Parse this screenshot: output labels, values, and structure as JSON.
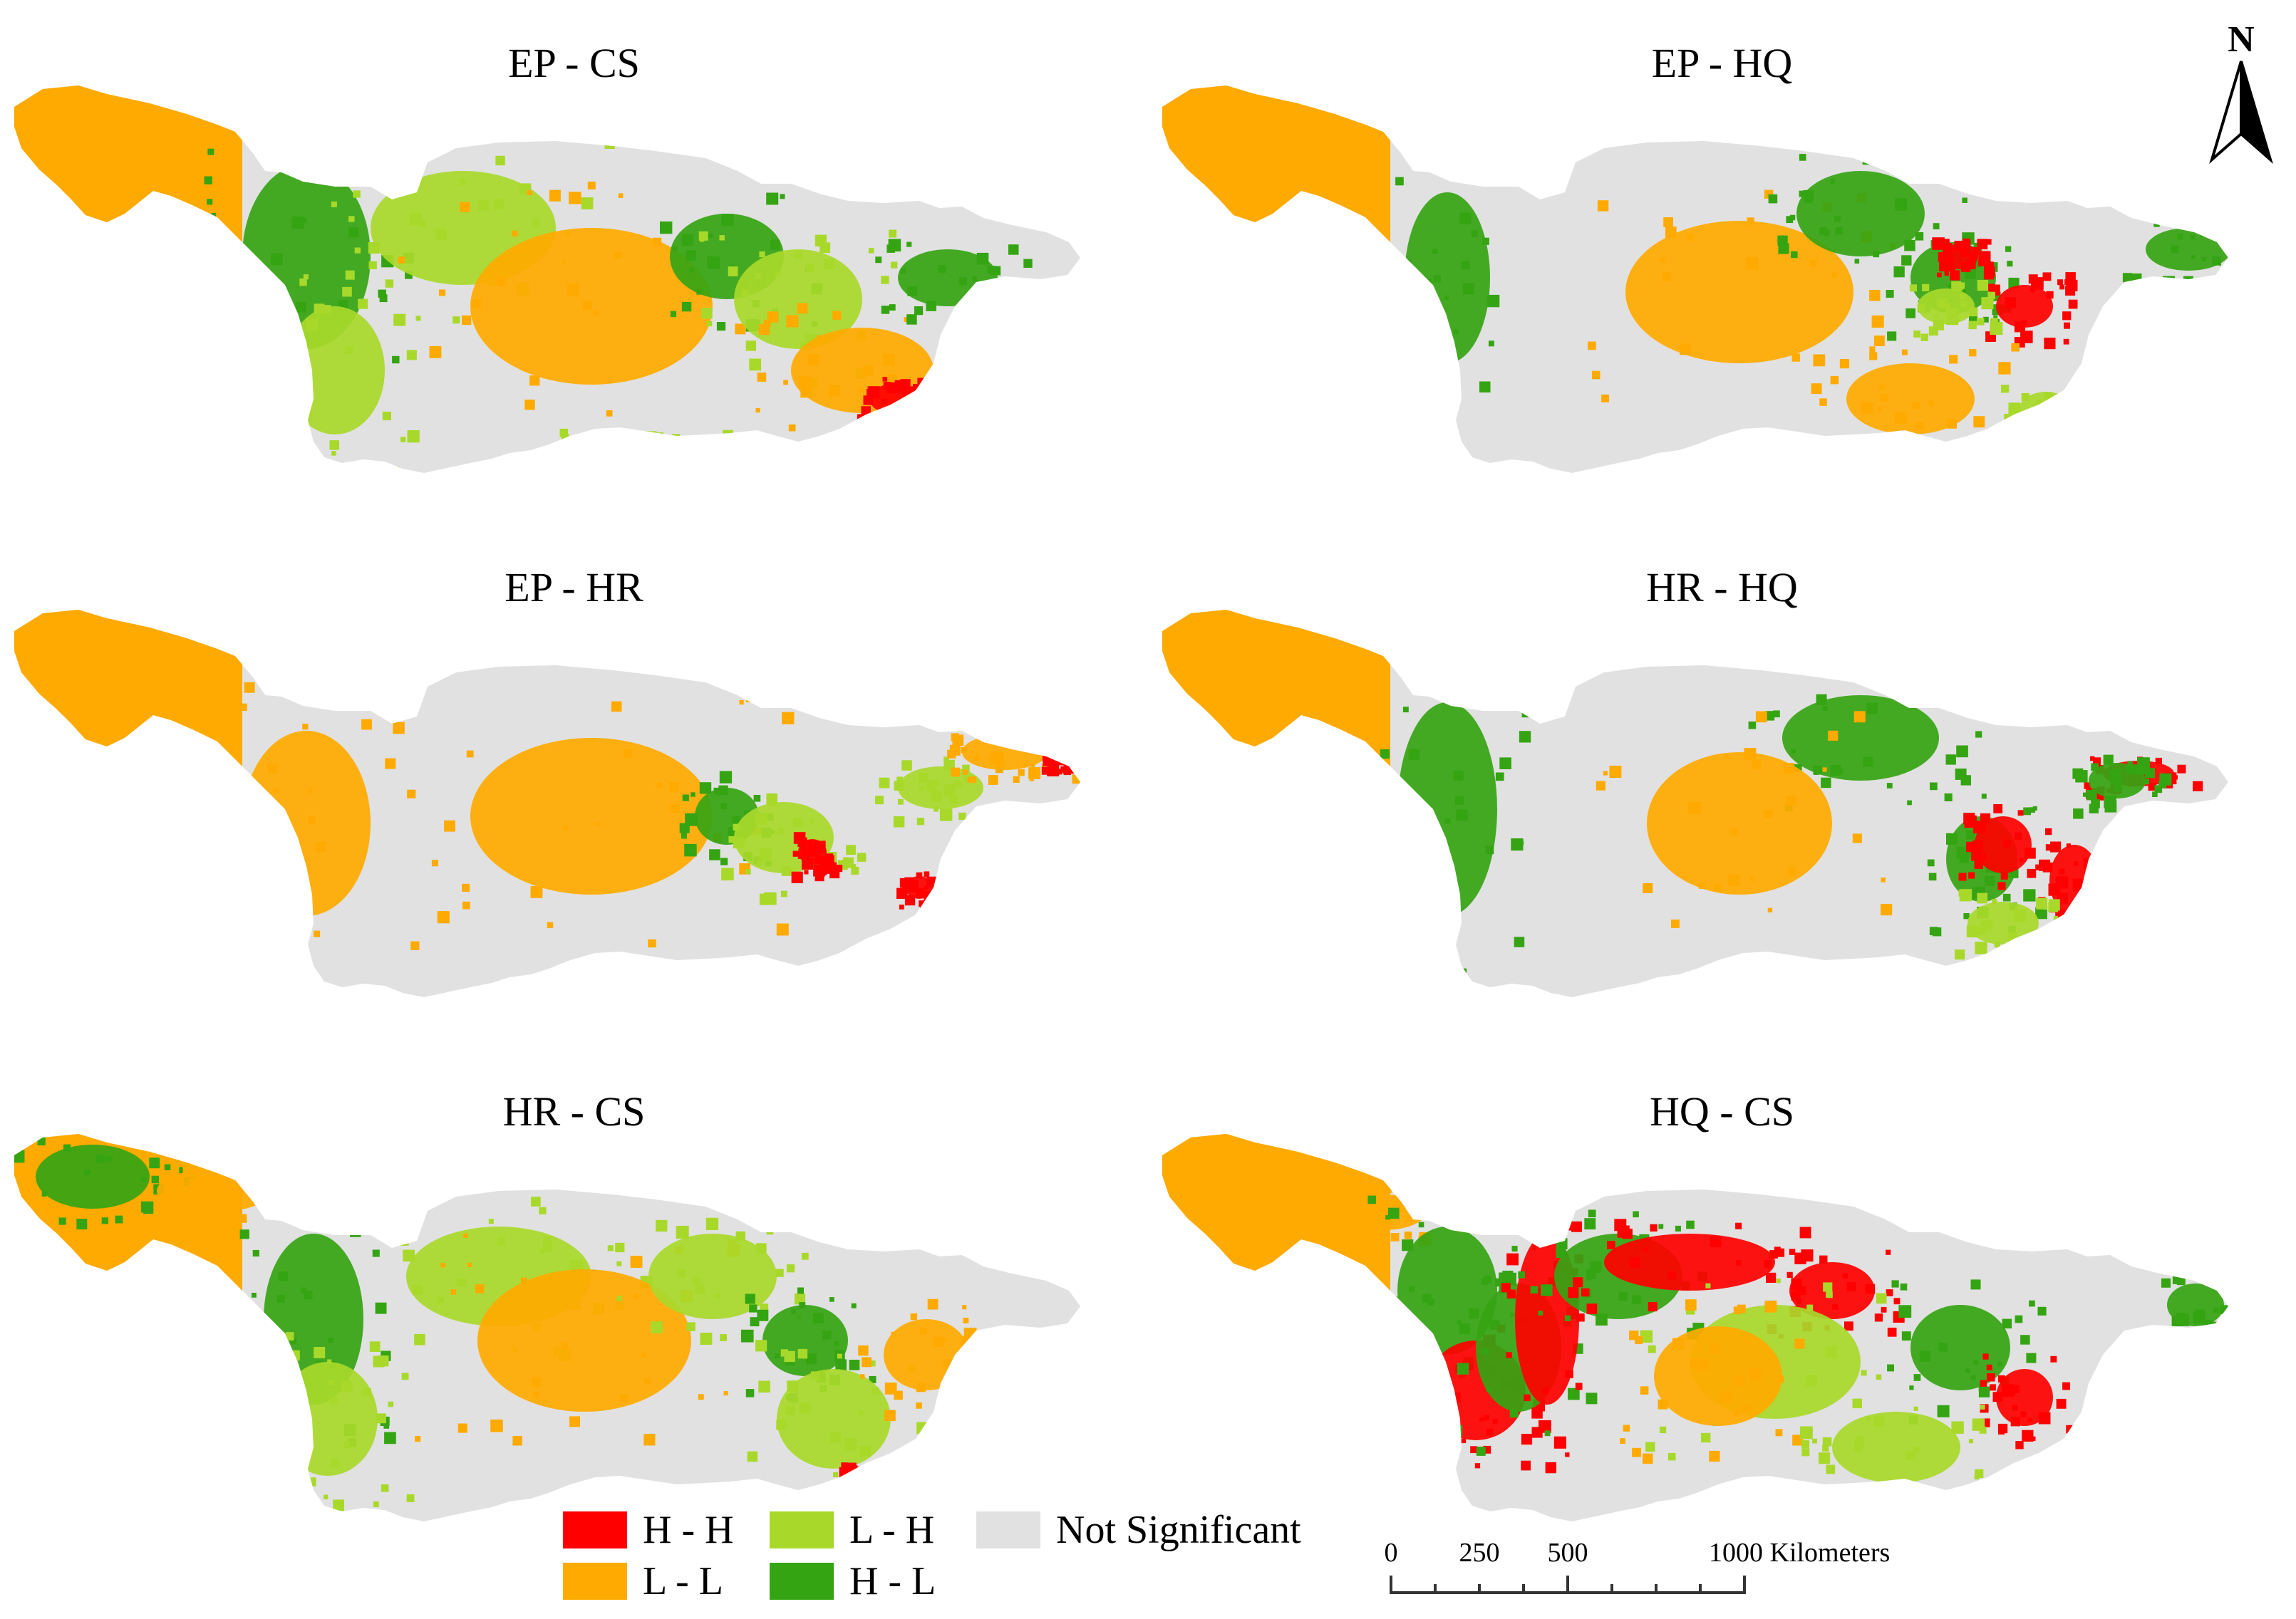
{
  "legend": {
    "hh": {
      "label": "H - H",
      "color": "#ff0000"
    },
    "ll": {
      "label": "L - L",
      "color": "#ffaa00"
    },
    "lh": {
      "label": "L - H",
      "color": "#a8d92a"
    },
    "hl": {
      "label": "H - L",
      "color": "#35a412"
    },
    "ns": {
      "label": "Not Significant",
      "color": "#e1e1e1"
    }
  },
  "panels": [
    {
      "title": "EP - CS"
    },
    {
      "title": "EP - HQ"
    },
    {
      "title": "EP - HR"
    },
    {
      "title": "HR - HQ"
    },
    {
      "title": "HR - CS"
    },
    {
      "title": "HQ - CS"
    }
  ],
  "scalebar": {
    "tick0": "0",
    "tick250": "250",
    "tick500": "500",
    "tick1000": "1000 Kilometers"
  },
  "north_arrow": {
    "label": "N",
    "icon": "north-arrow-icon"
  }
}
